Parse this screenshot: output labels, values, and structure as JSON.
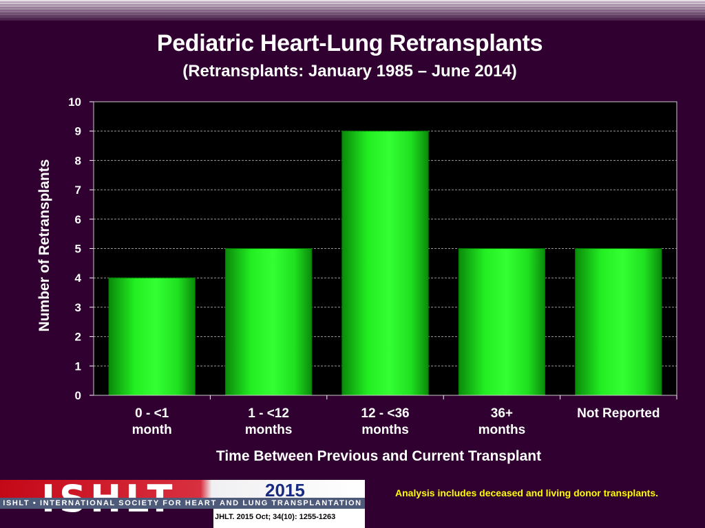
{
  "header": {
    "title": "Pediatric Heart-Lung Retransplants",
    "subtitle": "(Retransplants: January 1985 – June 2014)"
  },
  "chart_data": {
    "type": "bar",
    "categories": [
      [
        "0 - <1",
        "month"
      ],
      [
        "1 - <12",
        "months"
      ],
      [
        "12 - <36",
        "months"
      ],
      [
        "36+",
        "months"
      ],
      [
        "Not Reported"
      ]
    ],
    "values": [
      4,
      5,
      9,
      5,
      5
    ],
    "xlabel": "Time Between Previous and Current Transplant",
    "ylabel": "Number of Retransplants",
    "ylim": [
      0,
      10
    ],
    "yticks": [
      0,
      1,
      2,
      3,
      4,
      5,
      6,
      7,
      8,
      9,
      10
    ],
    "grid": true,
    "colors": {
      "bar": "#22ee22",
      "bar_edge": "#007700",
      "plot_bg": "#000000",
      "grid": "#9a9a9a"
    }
  },
  "footer": {
    "logo_letters": "ISHLT",
    "logo_year": "2015",
    "logo_band": "ISHLT • INTERNATIONAL SOCIETY FOR HEART AND LUNG TRANSPLANTATION",
    "citation": "JHLT. 2015 Oct; 34(10): 1255-1263",
    "note": "Analysis includes deceased and living donor transplants."
  }
}
